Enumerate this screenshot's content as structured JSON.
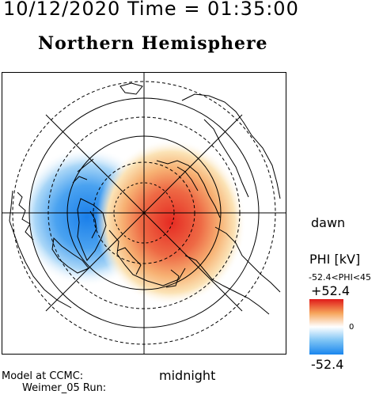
{
  "header": {
    "datetime": "10/12/2020 Time = 01:35:00",
    "hemisphere": "Northern Hemisphere"
  },
  "map": {
    "orientation": {
      "right": "dawn",
      "bottom": "midnight"
    },
    "potential_cells": [
      {
        "sign": "negative",
        "side": "dusk",
        "color": "#1f7fe8"
      },
      {
        "sign": "positive",
        "side": "dawn",
        "color": "#e8302a"
      }
    ]
  },
  "colorbar": {
    "title": "PHI [kV]",
    "range_text": "-52.4<PHI<45",
    "max_label": "+52.4",
    "zero_label": "0",
    "min_label": "-52.4",
    "colors": [
      "#e01a1a",
      "#f6a45a",
      "#ffffff",
      "#7cc3f5",
      "#1a86ee"
    ]
  },
  "footer": {
    "model_line1": "Model at CCMC:",
    "model_line2": "Weimer_05 Run:"
  }
}
